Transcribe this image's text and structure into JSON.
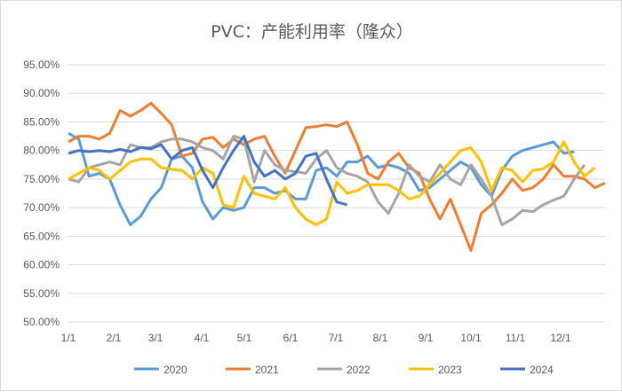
{
  "chart_data": {
    "type": "line",
    "title": "PVC：产能利用率（隆众）",
    "xlabel": "",
    "ylabel": "",
    "ylim": [
      50,
      95
    ],
    "y_ticks": [
      "50.00%",
      "55.00%",
      "60.00%",
      "65.00%",
      "70.00%",
      "75.00%",
      "80.00%",
      "85.00%",
      "90.00%",
      "95.00%"
    ],
    "x_ticks": [
      "1/1",
      "2/1",
      "3/1",
      "4/1",
      "5/1",
      "6/1",
      "7/1",
      "8/1",
      "9/1",
      "10/1",
      "11/1",
      "12/1"
    ],
    "grid": true,
    "legend": "bottom",
    "series": [
      {
        "name": "2020",
        "color": "#5B9BD5",
        "values": [
          83,
          82,
          75.5,
          76,
          75,
          70.5,
          67,
          68.5,
          71.5,
          73.5,
          78.5,
          79,
          77,
          71,
          68,
          70,
          69.5,
          70,
          73.5,
          73.5,
          72.5,
          73,
          71.5,
          71.5,
          76.5,
          77,
          75.5,
          78,
          78,
          79,
          77,
          77.5,
          77,
          76,
          73,
          73.5,
          75,
          76.5,
          78,
          77,
          74,
          72,
          76.5,
          79,
          80,
          80.5,
          81,
          81.5,
          79.5,
          79.8
        ]
      },
      {
        "name": "2021",
        "color": "#ED7D31",
        "values": [
          81.5,
          82.5,
          82.5,
          82,
          83,
          87,
          86,
          87,
          88.3,
          86.5,
          84.5,
          79,
          79.5,
          82,
          82.3,
          80.5,
          82,
          81,
          82,
          82.5,
          79,
          76,
          80,
          84,
          84.2,
          84.5,
          84.2,
          85,
          81,
          76,
          75,
          78,
          79.5,
          77,
          76,
          71.5,
          68,
          71.5,
          67,
          62.5,
          69,
          70.5,
          72.5,
          75,
          73,
          73.5,
          75,
          77.5,
          75.5,
          75.5,
          75,
          73.5,
          74.3
        ]
      },
      {
        "name": "2022",
        "color": "#A5A5A5",
        "values": [
          75,
          74.5,
          77,
          77.5,
          78,
          77.5,
          81,
          80.5,
          80.5,
          81.5,
          82,
          82,
          81.5,
          80.5,
          80,
          78.5,
          82.5,
          82,
          74.5,
          80,
          77.5,
          76.5,
          76.3,
          76,
          78.5,
          80,
          77,
          76,
          75.5,
          74.5,
          71,
          69,
          72.5,
          77.5,
          75.5,
          74.5,
          77.5,
          75,
          74,
          77.5,
          75,
          72,
          67,
          68,
          69.5,
          69.3,
          70.5,
          71.3,
          72,
          75,
          77.5
        ]
      },
      {
        "name": "2023",
        "color": "#FFC000",
        "values": [
          75,
          76,
          77,
          76.5,
          75,
          76.5,
          78,
          78.5,
          78.5,
          77,
          76.7,
          76.5,
          75,
          77,
          76,
          70.5,
          70,
          75.5,
          72.5,
          72,
          71.5,
          73.5,
          70,
          68,
          67,
          68,
          74.5,
          72.5,
          73,
          74,
          74,
          74,
          73,
          71.5,
          72,
          74,
          76,
          78,
          80,
          80.5,
          78,
          73,
          77,
          76.5,
          74.5,
          76.5,
          76.8,
          78,
          81.5,
          78,
          75.5,
          77
        ]
      },
      {
        "name": "2024",
        "color": "#4472C4",
        "values": [
          79.5,
          80,
          79.8,
          80,
          79.8,
          80.2,
          79.8,
          80.5,
          80.3,
          81,
          78.5,
          80,
          80.5,
          76.5,
          73.5,
          77,
          80,
          82.5,
          78,
          75.5,
          76.5,
          75,
          76,
          79,
          79.5,
          75,
          71,
          70.5
        ]
      }
    ]
  }
}
